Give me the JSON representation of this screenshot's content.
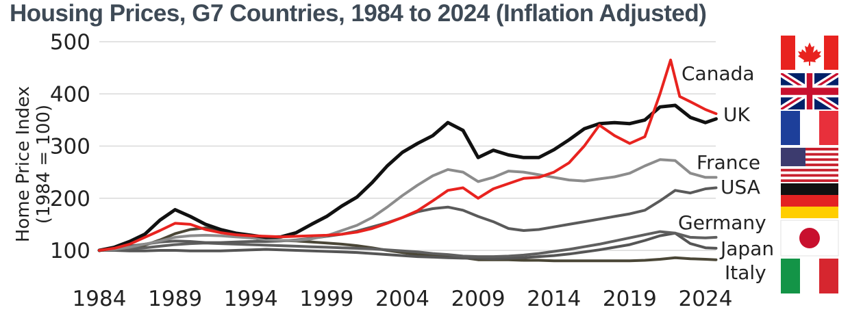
{
  "chart_data": {
    "type": "line",
    "title": "Housing Prices, G7 Countries, 1984 to 2024 (Inflation Adjusted)",
    "ylabel_lines": [
      "Home Price Index",
      "(1984 = 100)"
    ],
    "xlim": [
      1984,
      2025
    ],
    "ylim": [
      80,
      500
    ],
    "yticks": [
      100,
      200,
      300,
      400,
      500
    ],
    "xticks": [
      1984,
      1989,
      1994,
      1999,
      2004,
      2009,
      2014,
      2019,
      2024
    ],
    "grid": true,
    "legend": "direct labels at right with country flags",
    "series": [
      {
        "name": "Italy",
        "color": "#4a4636",
        "width": 4,
        "x": [
          1984,
          1985,
          1986,
          1987,
          1988,
          1989,
          1990,
          1991,
          1992,
          1993,
          1994,
          1995,
          1996,
          1997,
          1998,
          1999,
          2000,
          2001,
          2002,
          2003,
          2004,
          2005,
          2006,
          2007,
          2008,
          2009,
          2010,
          2011,
          2012,
          2013,
          2014,
          2015,
          2016,
          2017,
          2018,
          2019,
          2020,
          2021,
          2022,
          2023,
          2024,
          2024.7
        ],
        "y": [
          100,
          102,
          105,
          110,
          120,
          132,
          140,
          143,
          138,
          130,
          124,
          120,
          119,
          118,
          116,
          114,
          112,
          109,
          105,
          100,
          96,
          92,
          90,
          88,
          86,
          82,
          82,
          82,
          81,
          81,
          80,
          80,
          80,
          80,
          80,
          80,
          81,
          83,
          86,
          84,
          83,
          82
        ]
      },
      {
        "name": "Japan",
        "color": "#555555",
        "width": 4,
        "x": [
          1984,
          1985,
          1986,
          1987,
          1988,
          1989,
          1990,
          1991,
          1992,
          1993,
          1994,
          1995,
          1996,
          1997,
          1998,
          1999,
          2000,
          2001,
          2002,
          2003,
          2004,
          2005,
          2006,
          2007,
          2008,
          2009,
          2010,
          2011,
          2012,
          2013,
          2014,
          2015,
          2016,
          2017,
          2018,
          2019,
          2020,
          2021,
          2022,
          2023,
          2024,
          2024.7
        ],
        "y": [
          100,
          100,
          99,
          99,
          100,
          100,
          99,
          99,
          99,
          100,
          101,
          102,
          101,
          100,
          99,
          98,
          97,
          96,
          94,
          92,
          90,
          88,
          87,
          86,
          85,
          85,
          84,
          85,
          86,
          88,
          90,
          93,
          97,
          101,
          106,
          111,
          119,
          128,
          133,
          113,
          105,
          104
        ]
      },
      {
        "name": "Germany",
        "color": "#5f5f5f",
        "width": 4,
        "x": [
          1984,
          1985,
          1986,
          1987,
          1988,
          1989,
          1990,
          1991,
          1992,
          1993,
          1994,
          1995,
          1996,
          1997,
          1998,
          1999,
          2000,
          2001,
          2002,
          2003,
          2004,
          2005,
          2006,
          2007,
          2008,
          2009,
          2010,
          2011,
          2012,
          2013,
          2014,
          2015,
          2016,
          2017,
          2018,
          2019,
          2020,
          2021,
          2022,
          2023,
          2024,
          2024.7
        ],
        "y": [
          100,
          101,
          103,
          105,
          108,
          111,
          113,
          114,
          113,
          112,
          111,
          110,
          109,
          108,
          107,
          106,
          105,
          104,
          103,
          101,
          99,
          97,
          94,
          92,
          89,
          88,
          88,
          89,
          91,
          94,
          98,
          102,
          107,
          112,
          118,
          124,
          130,
          136,
          133,
          125,
          124,
          125
        ]
      },
      {
        "name": "USA",
        "color": "#5a5a5a",
        "width": 4,
        "x": [
          1984,
          1985,
          1986,
          1987,
          1988,
          1989,
          1990,
          1991,
          1992,
          1993,
          1994,
          1995,
          1996,
          1997,
          1998,
          1999,
          2000,
          2001,
          2002,
          2003,
          2004,
          2005,
          2006,
          2007,
          2008,
          2009,
          2010,
          2011,
          2012,
          2013,
          2014,
          2015,
          2016,
          2017,
          2018,
          2019,
          2020,
          2021,
          2022,
          2023,
          2024,
          2024.7
        ],
        "y": [
          100,
          104,
          108,
          112,
          116,
          118,
          117,
          115,
          115,
          116,
          117,
          117,
          118,
          120,
          123,
          127,
          131,
          137,
          145,
          153,
          163,
          174,
          180,
          183,
          177,
          165,
          155,
          142,
          138,
          140,
          145,
          150,
          155,
          160,
          165,
          170,
          177,
          195,
          215,
          210,
          218,
          220
        ]
      },
      {
        "name": "France",
        "color": "#8c8c8c",
        "width": 4,
        "x": [
          1984,
          1985,
          1986,
          1987,
          1988,
          1989,
          1990,
          1991,
          1992,
          1993,
          1994,
          1995,
          1996,
          1997,
          1998,
          1999,
          2000,
          2001,
          2002,
          2003,
          2004,
          2005,
          2006,
          2007,
          2008,
          2009,
          2010,
          2011,
          2012,
          2013,
          2014,
          2015,
          2016,
          2017,
          2018,
          2019,
          2020,
          2021,
          2022,
          2023,
          2024,
          2024.7
        ],
        "y": [
          100,
          102,
          106,
          112,
          118,
          125,
          128,
          129,
          128,
          126,
          124,
          121,
          119,
          119,
          122,
          128,
          138,
          148,
          163,
          183,
          205,
          225,
          243,
          255,
          250,
          232,
          240,
          252,
          250,
          245,
          240,
          235,
          233,
          237,
          241,
          248,
          262,
          274,
          272,
          248,
          240,
          240
        ]
      },
      {
        "name": "UK",
        "color": "#111111",
        "width": 5,
        "x": [
          1984,
          1985,
          1986,
          1987,
          1988,
          1989,
          1990,
          1991,
          1992,
          1993,
          1994,
          1995,
          1996,
          1997,
          1998,
          1999,
          2000,
          2001,
          2002,
          2003,
          2004,
          2005,
          2006,
          2007,
          2008,
          2009,
          2010,
          2011,
          2012,
          2013,
          2014,
          2015,
          2016,
          2017,
          2018,
          2019,
          2020,
          2021,
          2022,
          2023,
          2024,
          2024.7
        ],
        "y": [
          100,
          106,
          117,
          131,
          158,
          178,
          165,
          150,
          140,
          133,
          129,
          125,
          126,
          134,
          150,
          165,
          185,
          202,
          230,
          262,
          288,
          305,
          320,
          345,
          330,
          278,
          292,
          283,
          278,
          278,
          293,
          312,
          333,
          343,
          345,
          343,
          350,
          375,
          378,
          355,
          345,
          352
        ]
      },
      {
        "name": "Canada",
        "color": "#e8231f",
        "width": 4,
        "x": [
          1984,
          1985,
          1986,
          1987,
          1988,
          1989,
          1990,
          1991,
          1992,
          1993,
          1994,
          1995,
          1996,
          1997,
          1998,
          1999,
          2000,
          2001,
          2002,
          2003,
          2004,
          2005,
          2006,
          2007,
          2008,
          2009,
          2010,
          2011,
          2012,
          2013,
          2014,
          2015,
          2016,
          2017,
          2018,
          2019,
          2020,
          2021,
          2021.7,
          2022.3,
          2023,
          2024,
          2024.7
        ],
        "y": [
          100,
          104,
          112,
          125,
          138,
          152,
          150,
          140,
          134,
          130,
          128,
          127,
          126,
          127,
          128,
          129,
          131,
          135,
          142,
          152,
          163,
          176,
          195,
          215,
          220,
          200,
          218,
          228,
          238,
          240,
          250,
          268,
          300,
          340,
          320,
          305,
          318,
          400,
          465,
          395,
          385,
          370,
          362
        ]
      }
    ]
  },
  "labels": [
    "Canada",
    "UK",
    "France",
    "USA",
    "Germany",
    "Japan",
    "Italy"
  ],
  "flags": [
    "canada-flag",
    "uk-flag",
    "france-flag",
    "usa-flag",
    "germany-flag",
    "japan-flag",
    "italy-flag"
  ]
}
